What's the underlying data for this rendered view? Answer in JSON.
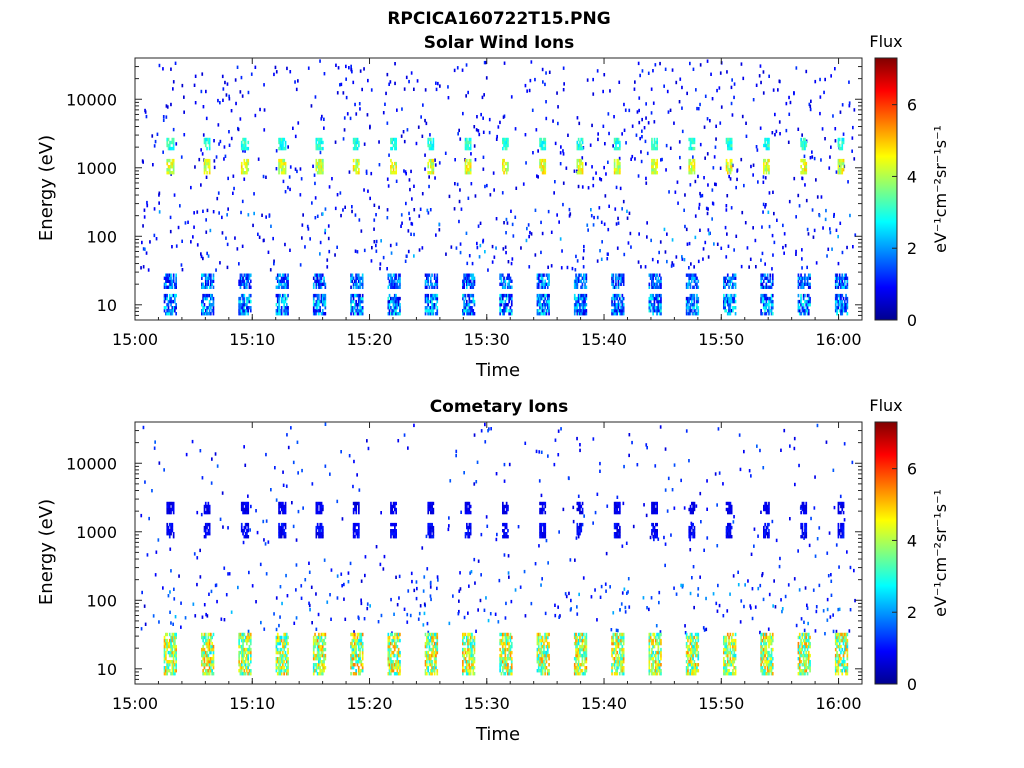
{
  "figure": {
    "title": "RPCICA160722T15.PNG"
  },
  "colormap": [
    "#00008f",
    "#0000ff",
    "#0080ff",
    "#00ffff",
    "#80ff80",
    "#ffff00",
    "#ff8000",
    "#ff0000",
    "#800000"
  ],
  "chart_data": [
    {
      "type": "heatmap",
      "title": "Solar Wind Ions",
      "xlabel": "Time",
      "ylabel": "Energy (eV)",
      "x_ticks": [
        "15:00",
        "15:10",
        "15:20",
        "15:30",
        "15:40",
        "15:50",
        "16:00"
      ],
      "x_tick_minutes": [
        0,
        10,
        20,
        30,
        40,
        50,
        60
      ],
      "xlim_minutes": [
        0,
        62
      ],
      "y_scale": "log",
      "ylim": [
        6,
        40000
      ],
      "y_ticks": [
        "10",
        "100",
        "1000",
        "10000"
      ],
      "y_tick_values": [
        10,
        100,
        1000,
        10000
      ],
      "colorbar": {
        "title": "Flux",
        "label": "eV⁻¹cm⁻²sr⁻¹s⁻¹",
        "range": [
          0,
          7.3
        ],
        "ticks": [
          "0",
          "2",
          "4",
          "6"
        ],
        "tick_values": [
          0,
          2,
          4,
          6
        ]
      },
      "period_minutes": 3.18,
      "first_burst_minute": 2.95,
      "burst_count": 19,
      "bands": [
        {
          "energy_min": 800,
          "energy_max": 1300,
          "flux": [
            3.5,
            5.0
          ]
        },
        {
          "energy_min": 1800,
          "energy_max": 2600,
          "flux": [
            2.5,
            3.5
          ]
        },
        {
          "energy_min": 17,
          "energy_max": 28,
          "flux": [
            0.6,
            2.6
          ]
        },
        {
          "energy_min": 7,
          "energy_max": 14,
          "flux": [
            0.6,
            3.0
          ]
        }
      ],
      "background": {
        "energy_min": 30,
        "energy_max": 35000,
        "flux": [
          0.5,
          1.3
        ]
      }
    },
    {
      "type": "heatmap",
      "title": "Cometary Ions",
      "xlabel": "Time",
      "ylabel": "Energy (eV)",
      "x_ticks": [
        "15:00",
        "15:10",
        "15:20",
        "15:30",
        "15:40",
        "15:50",
        "16:00"
      ],
      "x_tick_minutes": [
        0,
        10,
        20,
        30,
        40,
        50,
        60
      ],
      "xlim_minutes": [
        0,
        62
      ],
      "y_scale": "log",
      "ylim": [
        6,
        40000
      ],
      "y_ticks": [
        "10",
        "100",
        "1000",
        "10000"
      ],
      "y_tick_values": [
        10,
        100,
        1000,
        10000
      ],
      "colorbar": {
        "title": "Flux",
        "label": "eV⁻¹cm⁻²sr⁻¹s⁻¹",
        "range": [
          0,
          7.3
        ],
        "ticks": [
          "0",
          "2",
          "4",
          "6"
        ],
        "tick_values": [
          0,
          2,
          4,
          6
        ]
      },
      "period_minutes": 3.18,
      "first_burst_minute": 2.95,
      "burst_count": 19,
      "bands": [
        {
          "energy_min": 800,
          "energy_max": 1300,
          "flux": [
            0.5,
            1.2
          ]
        },
        {
          "energy_min": 1800,
          "energy_max": 2600,
          "flux": [
            0.5,
            1.0
          ]
        },
        {
          "energy_min": 8,
          "energy_max": 30,
          "flux": [
            2.5,
            5.5
          ]
        }
      ],
      "background": {
        "energy_min": 30,
        "energy_max": 35000,
        "flux": [
          0.6,
          1.6
        ]
      }
    }
  ]
}
